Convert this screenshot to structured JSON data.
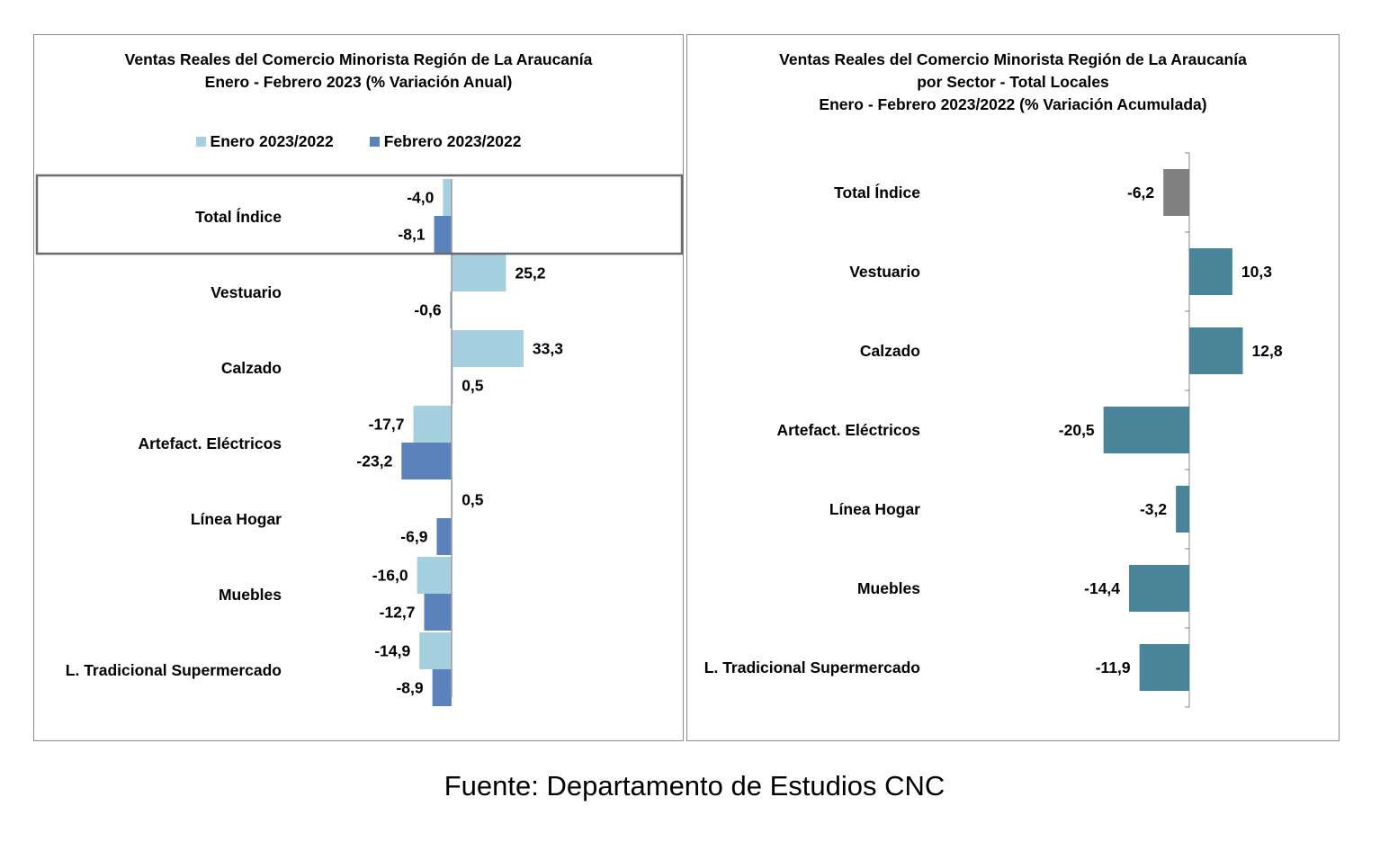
{
  "chart_data": [
    {
      "type": "bar",
      "orientation": "horizontal",
      "title": "Ventas Reales del Comercio Minorista  Región de La Araucanía",
      "subtitle": "Enero - Febrero 2023 (% Variación Anual)",
      "categories": [
        "Total Índice",
        "Vestuario",
        "Calzado",
        "Artefact. Eléctricos",
        "Línea Hogar",
        "Muebles",
        "L. Tradicional Supermercado"
      ],
      "series": [
        {
          "name": "Enero 2023/2022",
          "values": [
            -4.0,
            25.2,
            33.3,
            -17.7,
            0.5,
            -16.0,
            -14.9
          ],
          "labels": [
            "-4,0",
            "25,2",
            "33,3",
            "-17,7",
            "0,5",
            "-16,0",
            "-14,9"
          ],
          "color": "#a6cfe0"
        },
        {
          "name": "Febrero 2023/2022",
          "values": [
            -8.1,
            -0.6,
            0.5,
            -23.2,
            -6.9,
            -12.7,
            -8.9
          ],
          "labels": [
            "-8,1",
            "-0,6",
            "0,5",
            "-23,2",
            "-6,9",
            "-12,7",
            "-8,9"
          ],
          "color": "#5b82bb"
        }
      ],
      "xlim": [
        -40,
        40
      ],
      "legend": "top",
      "highlight": "Total Índice",
      "grid": false
    },
    {
      "type": "bar",
      "orientation": "horizontal",
      "title_lines": [
        "Ventas Reales del Comercio Minorista Región de La Araucanía",
        "por Sector - Total Locales",
        "Enero - Febrero 2023/2022 (% Variación Acumulada)"
      ],
      "categories": [
        "Total Índice",
        "Vestuario",
        "Calzado",
        "Artefact. Eléctricos",
        "Línea Hogar",
        "Muebles",
        "L. Tradicional Supermercado"
      ],
      "values": [
        -6.2,
        10.3,
        12.8,
        -20.5,
        -3.2,
        -14.4,
        -11.9
      ],
      "labels": [
        "-6,2",
        "10,3",
        "12,8",
        "-20,5",
        "-3,2",
        "-14,4",
        "-11,9"
      ],
      "colors": [
        "#808080",
        "#4a8499",
        "#4a8499",
        "#4a8499",
        "#4a8499",
        "#4a8499",
        "#4a8499"
      ],
      "xlim": [
        -30,
        30
      ],
      "grid": false
    }
  ],
  "source": "Fuente: Departamento de Estudios CNC"
}
